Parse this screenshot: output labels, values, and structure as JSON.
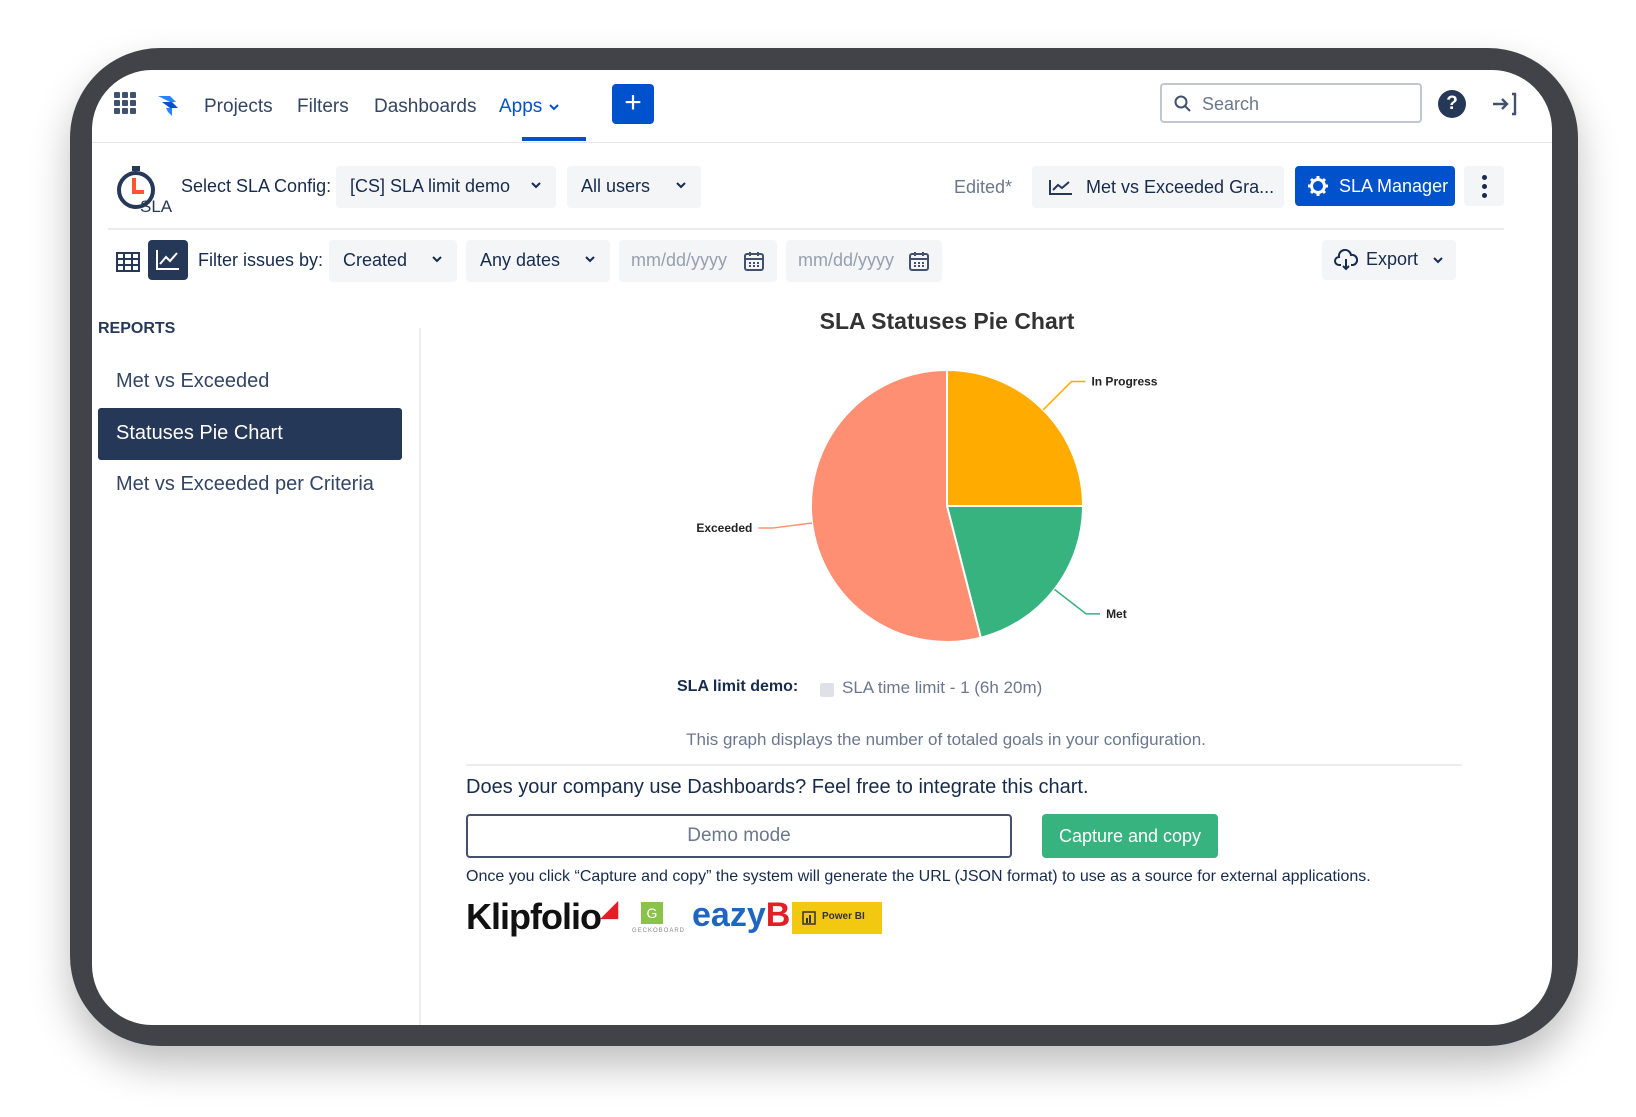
{
  "nav": {
    "links": [
      "Projects",
      "Filters",
      "Dashboards",
      "Apps"
    ],
    "plus_label": "+",
    "search_placeholder": "Search",
    "help_label": "?"
  },
  "config": {
    "select_label": "Select SLA Config:",
    "config_value": "[CS] SLA limit demo",
    "users_value": "All users",
    "edited_label": "Edited*",
    "graph_value": "Met vs Exceeded Gra...",
    "sla_manager_label": "SLA Manager",
    "logo_text": "SLA"
  },
  "filter": {
    "label": "Filter issues by:",
    "field_value": "Created",
    "dates_value": "Any dates",
    "date_from_placeholder": "mm/dd/yyyy",
    "date_to_placeholder": "mm/dd/yyyy",
    "export_label": "Export"
  },
  "sidebar": {
    "title": "REPORTS",
    "items": [
      {
        "label": "Met vs Exceeded",
        "active": false
      },
      {
        "label": "Statuses Pie Chart",
        "active": true
      },
      {
        "label": "Met vs Exceeded per Criteria",
        "active": false
      }
    ]
  },
  "chart_data": {
    "type": "pie",
    "title": "SLA Statuses Pie Chart",
    "labels": [
      "In Progress",
      "Met",
      "Exceeded"
    ],
    "values": [
      25,
      21,
      54
    ],
    "colors": [
      "#ffab00",
      "#36b37e",
      "#ff8f73"
    ]
  },
  "legend": {
    "label": "SLA limit demo:",
    "item": "SLA time limit - 1 (6h 20m)"
  },
  "caption": "This graph displays the number of totaled goals in your configuration.",
  "integrate": {
    "heading": "Does your company use Dashboards? Feel free to integrate this chart.",
    "input_value": "Demo mode",
    "button_label": "Capture and copy",
    "note": "Once you click “Capture and copy” the system will generate the URL (JSON format) to use as a source for external applications.",
    "logos": {
      "klipfolio": "Klipfolio",
      "geckoboard_mark": "G",
      "geckoboard": "GECKOBOARD",
      "eazybi": "eazy",
      "eazybi_bi": "BI",
      "powerbi": "Power BI"
    }
  }
}
